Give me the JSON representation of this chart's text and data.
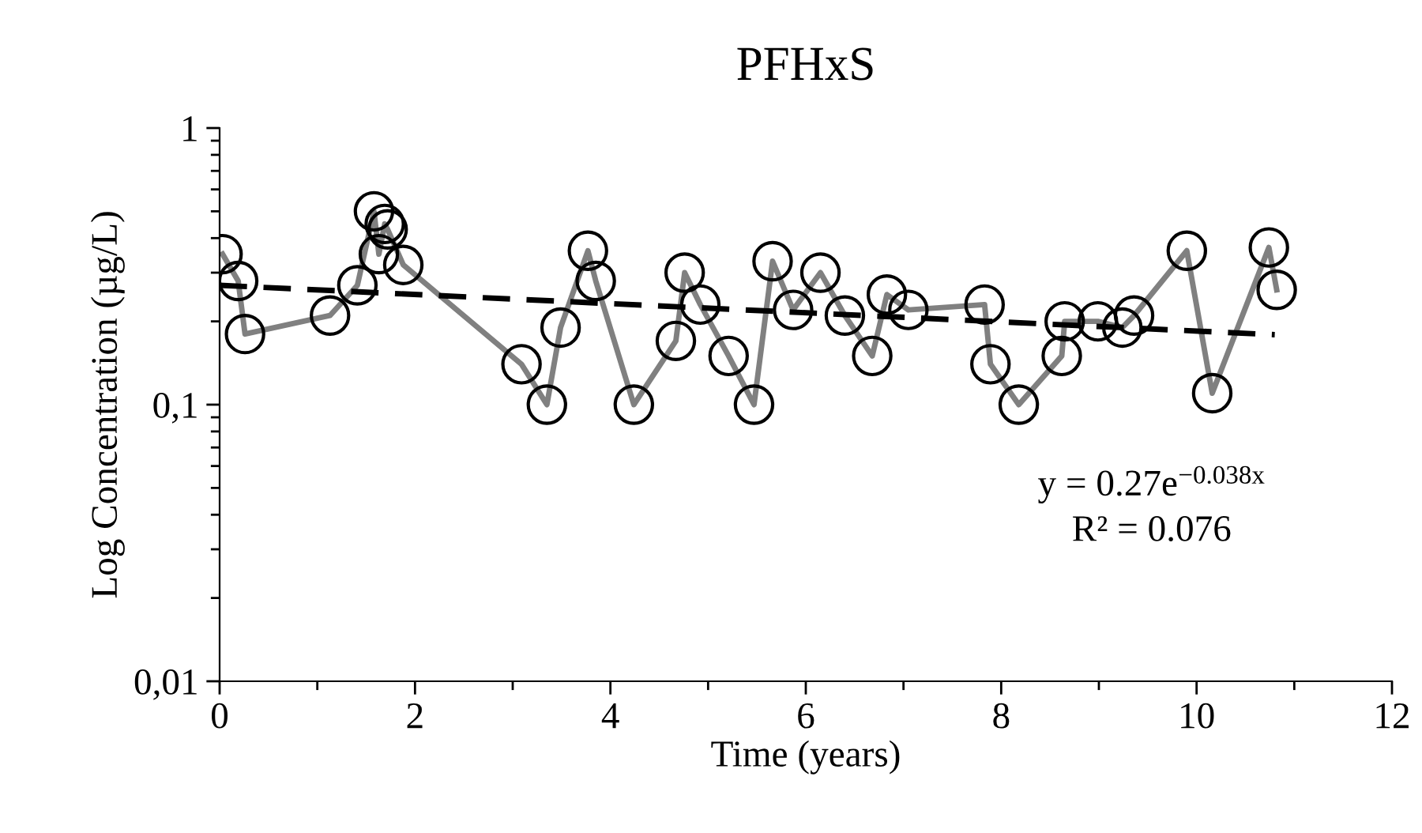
{
  "chart_data": {
    "type": "line",
    "title": "PFHxS",
    "xlabel": "Time (years)",
    "ylabel": "Log Concentration (µg/L)",
    "log": "y",
    "grid": false,
    "xlim": [
      0,
      12
    ],
    "xticks": [
      0,
      2,
      4,
      6,
      8,
      10,
      12
    ],
    "ylim": [
      0.01,
      1
    ],
    "yticks": [
      {
        "value": 0.01,
        "label": "0,01"
      },
      {
        "value": 0.1,
        "label": "0,1"
      },
      {
        "value": 1,
        "label": "1"
      }
    ],
    "annotations": [
      "y = 0.27e$^{−0.038x}$",
      "R² = 0.076"
    ],
    "series": [
      {
        "color": "#808080",
        "marker": "circle",
        "line_style": "solid",
        "x": [
          0.03,
          0.19,
          0.26,
          1.13,
          1.41,
          1.58,
          1.63,
          1.69,
          1.72,
          1.88,
          3.09,
          3.35,
          3.49,
          3.77,
          3.85,
          4.24,
          4.67,
          4.76,
          4.92,
          5.21,
          5.47,
          5.66,
          5.87,
          6.15,
          6.4,
          6.68,
          6.83,
          7.05,
          7.83,
          7.89,
          8.18,
          8.62,
          8.65,
          8.99,
          9.24,
          9.36,
          9.9,
          10.16,
          10.74,
          10.82
        ],
        "values": [
          0.35,
          0.28,
          0.18,
          0.21,
          0.27,
          0.5,
          0.35,
          0.45,
          0.43,
          0.32,
          0.14,
          0.1,
          0.19,
          0.36,
          0.28,
          0.1,
          0.17,
          0.3,
          0.23,
          0.15,
          0.1,
          0.33,
          0.22,
          0.3,
          0.21,
          0.15,
          0.25,
          0.22,
          0.23,
          0.14,
          0.1,
          0.15,
          0.2,
          0.2,
          0.19,
          0.21,
          0.36,
          0.11,
          0.37,
          0.26
        ]
      },
      {
        "color": "#000000",
        "marker": "none",
        "line_style": "dashed",
        "x": [
          0,
          10.8
        ],
        "values": [
          0.27,
          0.179
        ]
      }
    ]
  }
}
